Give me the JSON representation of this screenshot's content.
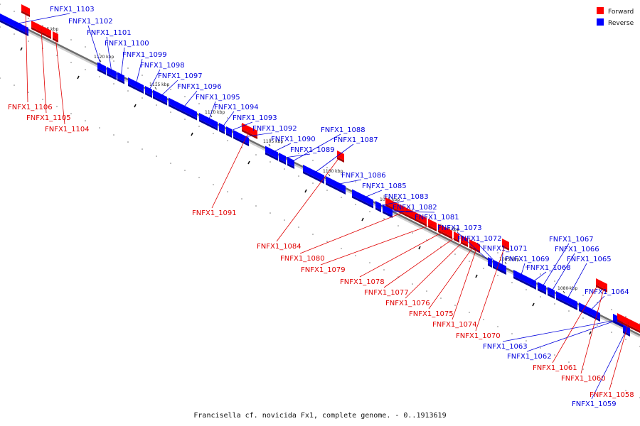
{
  "caption": "Francisella cf. novicida Fx1, complete genome. - 0..1913619",
  "legend": [
    {
      "label": "Forward",
      "color": "#ff0000"
    },
    {
      "label": "Reverse",
      "color": "#0000ff"
    }
  ],
  "colors": {
    "forward": "#ff0000",
    "reverse": "#0000ff",
    "backbone": "#6e6e6e"
  },
  "ticks": [
    "1125 kbp",
    "1120 kbp",
    "1115 kbp",
    "1110 kbp",
    "1105 kbp",
    "1100 kbp",
    "1095 kbp",
    "1090 kbp",
    "1085 kbp",
    "1080 kbp"
  ],
  "genes": [
    {
      "name": "FNFX1_1103",
      "strand": "reverse"
    },
    {
      "name": "FNFX1_1102",
      "strand": "reverse"
    },
    {
      "name": "FNFX1_1101",
      "strand": "reverse"
    },
    {
      "name": "FNFX1_1100",
      "strand": "reverse"
    },
    {
      "name": "FNFX1_1099",
      "strand": "reverse"
    },
    {
      "name": "FNFX1_1098",
      "strand": "reverse"
    },
    {
      "name": "FNFX1_1097",
      "strand": "reverse"
    },
    {
      "name": "FNFX1_1096",
      "strand": "reverse"
    },
    {
      "name": "FNFX1_1095",
      "strand": "reverse"
    },
    {
      "name": "FNFX1_1094",
      "strand": "reverse"
    },
    {
      "name": "FNFX1_1093",
      "strand": "reverse"
    },
    {
      "name": "FNFX1_1092",
      "strand": "reverse"
    },
    {
      "name": "FNFX1_1090",
      "strand": "reverse"
    },
    {
      "name": "FNFX1_1089",
      "strand": "reverse"
    },
    {
      "name": "FNFX1_1088",
      "strand": "reverse"
    },
    {
      "name": "FNFX1_1087",
      "strand": "reverse"
    },
    {
      "name": "FNFX1_1086",
      "strand": "reverse"
    },
    {
      "name": "FNFX1_1085",
      "strand": "reverse"
    },
    {
      "name": "FNFX1_1083",
      "strand": "reverse"
    },
    {
      "name": "FNFX1_1082",
      "strand": "reverse"
    },
    {
      "name": "FNFX1_1081",
      "strand": "reverse"
    },
    {
      "name": "FNFX1_1073",
      "strand": "reverse"
    },
    {
      "name": "FNFX1_1072",
      "strand": "reverse"
    },
    {
      "name": "FNFX1_1071",
      "strand": "reverse"
    },
    {
      "name": "FNFX1_1069",
      "strand": "reverse"
    },
    {
      "name": "FNFX1_1068",
      "strand": "reverse"
    },
    {
      "name": "FNFX1_1067",
      "strand": "reverse"
    },
    {
      "name": "FNFX1_1066",
      "strand": "reverse"
    },
    {
      "name": "FNFX1_1065",
      "strand": "reverse"
    },
    {
      "name": "FNFX1_1064",
      "strand": "reverse"
    },
    {
      "name": "FNFX1_1063",
      "strand": "reverse"
    },
    {
      "name": "FNFX1_1062",
      "strand": "reverse"
    },
    {
      "name": "FNFX1_1059",
      "strand": "reverse"
    },
    {
      "name": "FNFX1_1106",
      "strand": "forward"
    },
    {
      "name": "FNFX1_1105",
      "strand": "forward"
    },
    {
      "name": "FNFX1_1104",
      "strand": "forward"
    },
    {
      "name": "FNFX1_1091",
      "strand": "forward"
    },
    {
      "name": "FNFX1_1084",
      "strand": "forward"
    },
    {
      "name": "FNFX1_1080",
      "strand": "forward"
    },
    {
      "name": "FNFX1_1079",
      "strand": "forward"
    },
    {
      "name": "FNFX1_1078",
      "strand": "forward"
    },
    {
      "name": "FNFX1_1077",
      "strand": "forward"
    },
    {
      "name": "FNFX1_1076",
      "strand": "forward"
    },
    {
      "name": "FNFX1_1075",
      "strand": "forward"
    },
    {
      "name": "FNFX1_1074",
      "strand": "forward"
    },
    {
      "name": "FNFX1_1070",
      "strand": "forward"
    },
    {
      "name": "FNFX1_1061",
      "strand": "forward"
    },
    {
      "name": "FNFX1_1060",
      "strand": "forward"
    },
    {
      "name": "FNFX1_1058",
      "strand": "forward"
    }
  ]
}
